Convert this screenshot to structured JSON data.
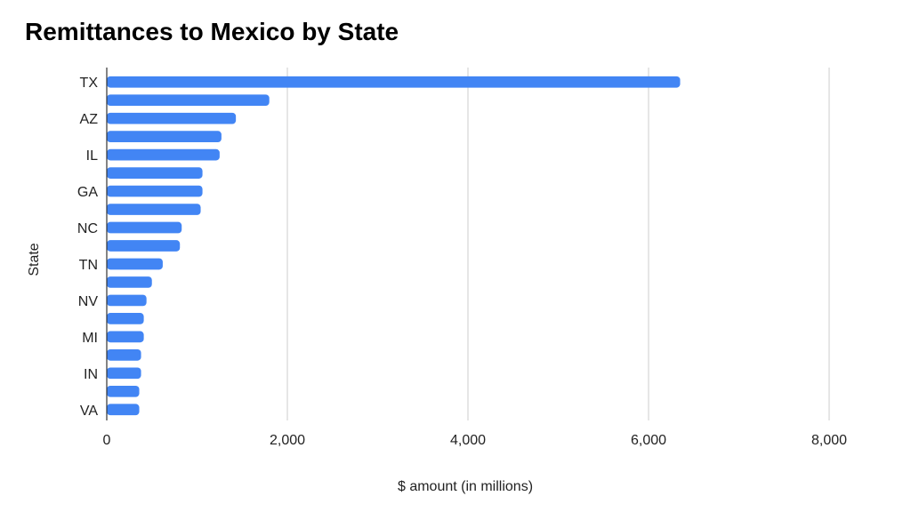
{
  "chart_data": {
    "type": "bar",
    "orientation": "horizontal",
    "title": "Remittances to Mexico by State",
    "xlabel": "$ amount (in millions)",
    "ylabel": "State",
    "xlim": [
      0,
      8000
    ],
    "x_ticks": [
      0,
      2000,
      4000,
      6000,
      8000
    ],
    "x_tick_labels": [
      "0",
      "2,000",
      "4,000",
      "6,000",
      "8,000"
    ],
    "grid": true,
    "legend": "none",
    "bar_color": "#4285f4",
    "categories": [
      "TX",
      "",
      "AZ",
      "",
      "IL",
      "",
      "GA",
      "",
      "NC",
      "",
      "TN",
      "",
      "NV",
      "",
      "MI",
      "",
      "IN",
      "",
      "VA"
    ],
    "values": [
      6350,
      1800,
      1430,
      1270,
      1250,
      1060,
      1060,
      1040,
      830,
      810,
      620,
      500,
      440,
      410,
      410,
      380,
      380,
      360,
      360
    ]
  }
}
